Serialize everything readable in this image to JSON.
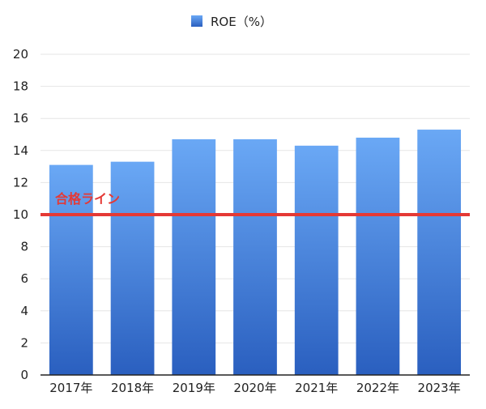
{
  "chart_data": {
    "type": "bar",
    "categories": [
      "2017年",
      "2018年",
      "2019年",
      "2020年",
      "2021年",
      "2022年",
      "2023年"
    ],
    "series": [
      {
        "name": "ROE（%）",
        "values": [
          13.1,
          13.3,
          14.7,
          14.7,
          14.3,
          14.8,
          15.3
        ]
      }
    ],
    "ylim": [
      0,
      20
    ],
    "yticks": [
      "0",
      "2",
      "4",
      "6",
      "8",
      "10",
      "12",
      "14",
      "16",
      "18",
      "20"
    ],
    "grid": true,
    "legend": "top-center",
    "reference_line": {
      "value": 10,
      "label": "合格ライン",
      "color": "#e53935"
    },
    "colors": {
      "bar_top": "#6aa8f5",
      "bar_bottom": "#2a5fbf",
      "grid": "#e6e6e6",
      "axis": "#222222"
    }
  }
}
